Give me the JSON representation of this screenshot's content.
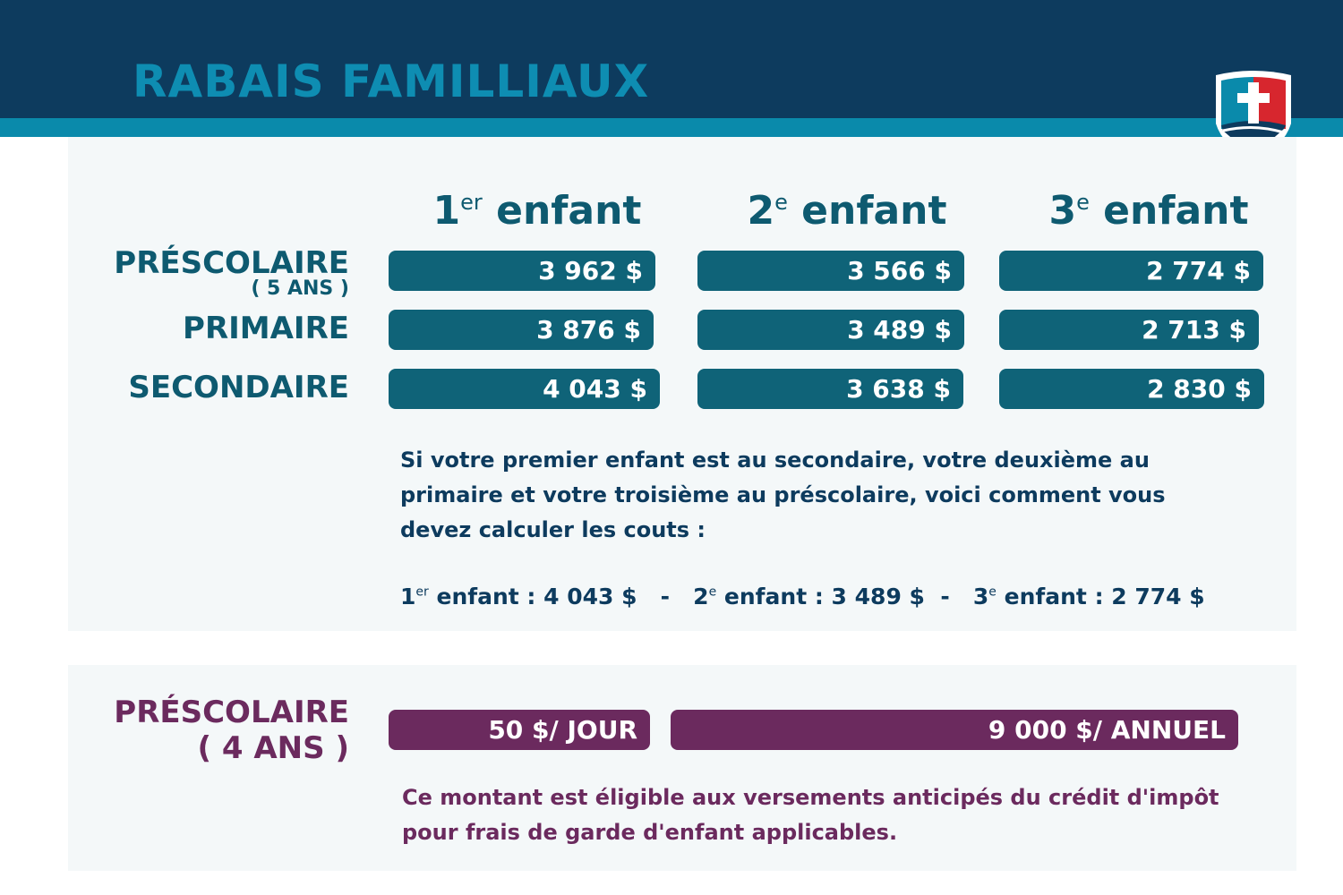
{
  "header": {
    "title": "RABAIS FAMILLIAUX"
  },
  "colors": {
    "navy": "#0d3b5e",
    "teal": "#0a8aab",
    "pill": "#0f6378",
    "purple": "#6b2a5e"
  },
  "columns": [
    {
      "num": "1",
      "sup": "er",
      "label": "enfant"
    },
    {
      "num": "2",
      "sup": "e",
      "label": "enfant"
    },
    {
      "num": "3",
      "sup": "e",
      "label": "enfant"
    }
  ],
  "rows": [
    {
      "label": "PRÉSCOLAIRE",
      "sub": "( 5 ANS )",
      "values": [
        "3 962 $",
        "3 566 $",
        "2 774 $"
      ]
    },
    {
      "label": "PRIMAIRE",
      "values": [
        "3 876 $",
        "3 489 $",
        "2 713 $"
      ]
    },
    {
      "label": "SECONDAIRE",
      "values": [
        "4 043 $",
        "3 638 $",
        "2 830 $"
      ]
    }
  ],
  "note": "Si votre premier enfant est au secondaire, votre deuxième au primaire et votre troisième au préscolaire, voici comment vous devez calculer les couts :",
  "calc": [
    {
      "num": "1",
      "sup": "er",
      "text": " enfant : 4 043 $"
    },
    {
      "num": "2",
      "sup": "e",
      "text": " enfant : 3 489 $"
    },
    {
      "num": "3",
      "sup": "e",
      "text": " enfant : 2 774 $"
    }
  ],
  "calc_sep": "-",
  "prek": {
    "label": "PRÉSCOLAIRE",
    "sub": "( 4 ANS )",
    "daily": "50 $/ JOUR",
    "annual": "9 000 $/ ANNUEL",
    "note": "Ce montant est éligible aux versements anticipés du crédit d'impôt pour frais de garde d'enfant applicables."
  },
  "logo": {
    "icon": "shield-cross-icon"
  }
}
